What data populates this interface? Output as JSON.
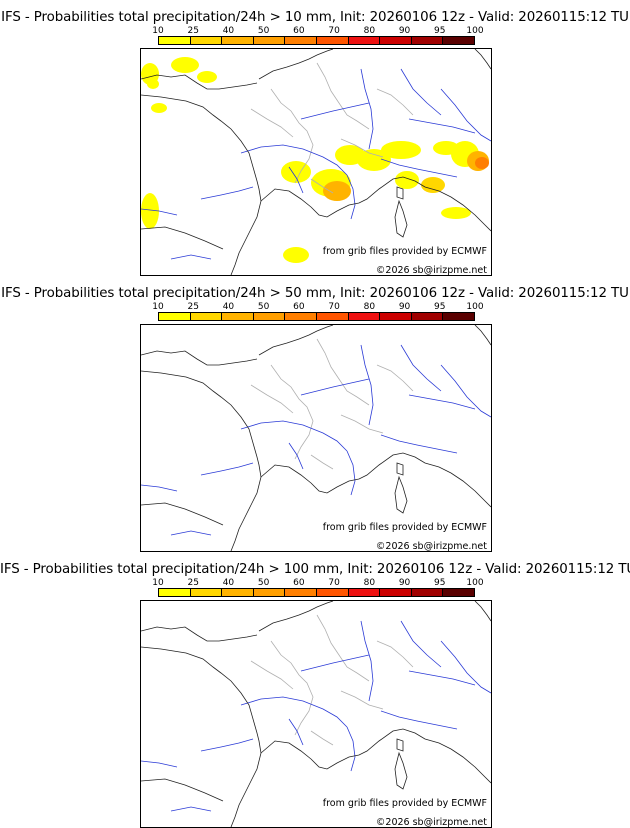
{
  "colorbar": {
    "ticks": [
      "10",
      "25",
      "40",
      "50",
      "60",
      "70",
      "80",
      "90",
      "95",
      "100"
    ],
    "colors": [
      "#ffff00",
      "#ffd700",
      "#ffb300",
      "#ff9f00",
      "#ff7f00",
      "#ff5500",
      "#ee1111",
      "#cc0000",
      "#a00000",
      "#5a0000"
    ]
  },
  "panels": [
    {
      "title": "IFS - Probabilities total precipitation/24h > 10 mm, Init: 20260106 12z - Valid: 20260115:12 TU",
      "credit": "from grib files provided by ECMWF",
      "copyright": "©2026 sb@irizpme.net",
      "has_precip": true
    },
    {
      "title": "IFS - Probabilities total precipitation/24h > 50 mm, Init: 20260106 12z - Valid: 20260115:12 TU",
      "credit": "from grib files provided by ECMWF",
      "copyright": "©2026 sb@irizpme.net",
      "has_precip": false
    },
    {
      "title": "IFS - Probabilities total precipitation/24h > 100 mm, Init: 20260106 12z - Valid: 20260115:12 TU",
      "credit": "from grib files provided by ECMWF",
      "copyright": "©2026 sb@irizpme.net",
      "has_precip": false
    }
  ]
}
